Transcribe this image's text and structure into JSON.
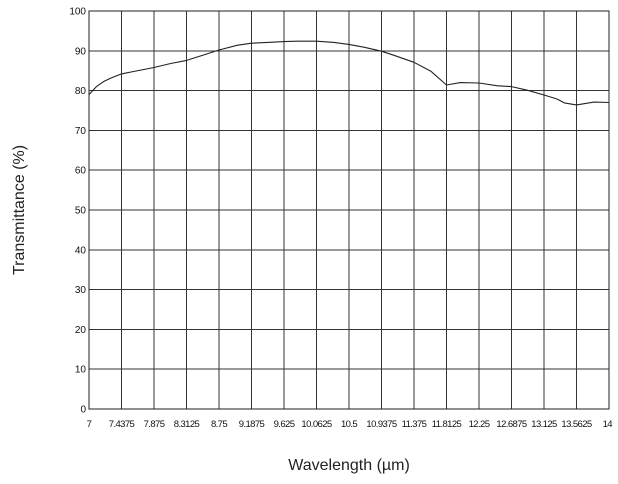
{
  "chart_data": {
    "type": "line",
    "title": "",
    "xlabel": "Wavelength (µm)",
    "ylabel": "Transmittance (%)",
    "xlim": [
      7,
      14
    ],
    "ylim": [
      0,
      100
    ],
    "grid": true,
    "x_ticks": [
      7,
      7.4375,
      7.875,
      8.3125,
      8.75,
      9.1875,
      9.625,
      10.0625,
      10.5,
      10.9375,
      11.375,
      11.8125,
      12.25,
      12.6875,
      13.125,
      13.5625,
      14
    ],
    "x_tick_labels": [
      "7",
      "7.4375",
      "7.875",
      "8.3125",
      "8.75",
      "9.1875",
      "9.625",
      "10.0625",
      "10.5",
      "10.9375",
      "11.375",
      "11.8125",
      "12.25",
      "12.6875",
      "13.125",
      "13.5625",
      "14"
    ],
    "y_ticks": [
      0,
      10,
      20,
      30,
      40,
      50,
      60,
      70,
      80,
      90,
      100
    ],
    "y_tick_labels": [
      "0",
      "10",
      "20",
      "30",
      "40",
      "50",
      "60",
      "70",
      "80",
      "90",
      "100"
    ],
    "series": [
      {
        "x": [
          7.0,
          7.1,
          7.2,
          7.3,
          7.4375,
          7.6,
          7.875,
          8.1,
          8.3125,
          8.5,
          8.75,
          9.0,
          9.1875,
          9.4,
          9.625,
          9.8,
          10.0625,
          10.3,
          10.5,
          10.7,
          10.9375,
          11.1,
          11.375,
          11.6,
          11.8125,
          12.0,
          12.25,
          12.5,
          12.6875,
          12.9,
          13.125,
          13.3,
          13.4,
          13.5625,
          13.8,
          14.0
        ],
        "y": [
          79,
          81,
          82.3,
          83.2,
          84.2,
          84.8,
          85.8,
          86.8,
          87.6,
          88.7,
          90.2,
          91.4,
          91.9,
          92.1,
          92.3,
          92.4,
          92.4,
          92.1,
          91.6,
          90.9,
          89.9,
          88.9,
          87.1,
          84.9,
          81.4,
          82.0,
          81.9,
          81.2,
          81.0,
          80.1,
          78.9,
          77.9,
          76.9,
          76.4,
          77.1,
          77.0
        ]
      }
    ]
  }
}
